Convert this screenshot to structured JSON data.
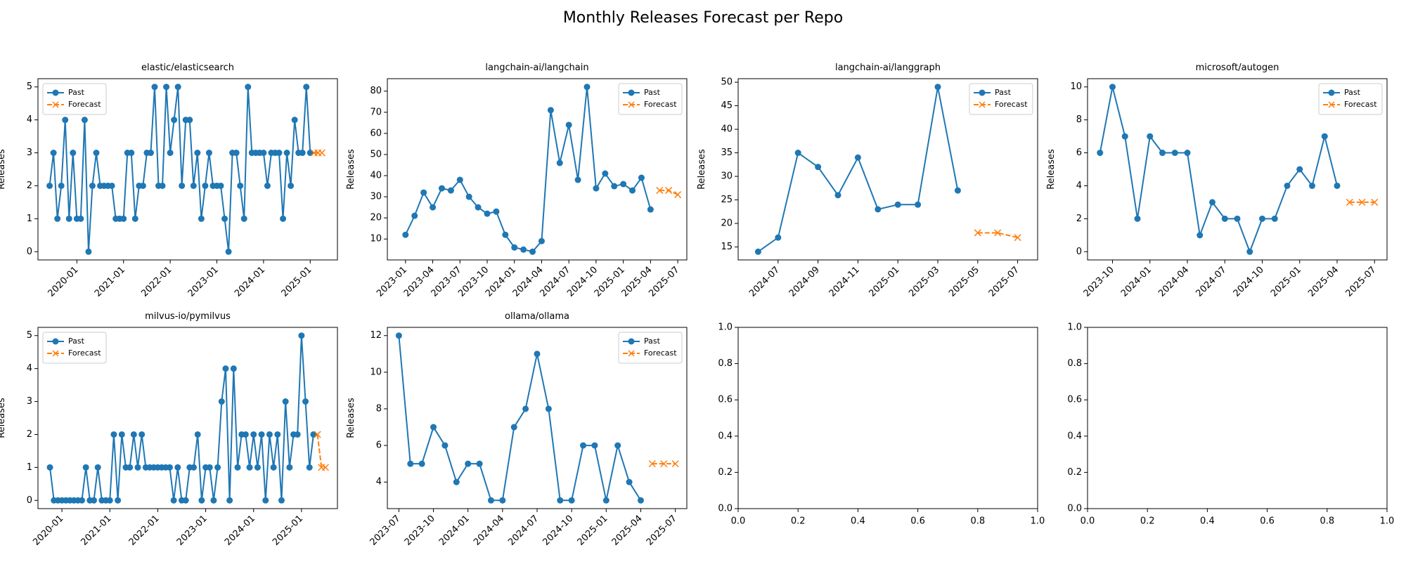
{
  "title": "Monthly Releases Forecast per Repo",
  "chart_data": [
    {
      "type": "line",
      "title": "elastic/elasticsearch",
      "y_label": "Releases",
      "legend": "upper left",
      "xlim": [
        "2019-03",
        "2025-08"
      ],
      "ylim": [
        -0.25,
        5.25
      ],
      "xticks": [
        "2020-01",
        "2021-01",
        "2022-01",
        "2023-01",
        "2024-01",
        "2025-01"
      ],
      "yticks": [
        0,
        1,
        2,
        3,
        4,
        5
      ],
      "series": [
        {
          "name": "Past",
          "color": "#1f77b4",
          "marker": "o",
          "linestyle": "solid",
          "x": [
            "2019-06",
            "2019-07",
            "2019-08",
            "2019-09",
            "2019-10",
            "2019-11",
            "2019-12",
            "2020-01",
            "2020-02",
            "2020-03",
            "2020-04",
            "2020-05",
            "2020-06",
            "2020-07",
            "2020-08",
            "2020-09",
            "2020-10",
            "2020-11",
            "2020-12",
            "2021-01",
            "2021-02",
            "2021-03",
            "2021-04",
            "2021-05",
            "2021-06",
            "2021-07",
            "2021-08",
            "2021-09",
            "2021-10",
            "2021-11",
            "2021-12",
            "2022-01",
            "2022-02",
            "2022-03",
            "2022-04",
            "2022-05",
            "2022-06",
            "2022-07",
            "2022-08",
            "2022-09",
            "2022-10",
            "2022-11",
            "2022-12",
            "2023-01",
            "2023-02",
            "2023-03",
            "2023-04",
            "2023-05",
            "2023-06",
            "2023-07",
            "2023-08",
            "2023-09",
            "2023-10",
            "2023-11",
            "2023-12",
            "2024-01",
            "2024-02",
            "2024-03",
            "2024-04",
            "2024-05",
            "2024-06",
            "2024-07",
            "2024-08",
            "2024-09",
            "2024-10",
            "2024-11",
            "2024-12",
            "2025-01"
          ],
          "values": [
            2,
            3,
            1,
            2,
            4,
            1,
            3,
            1,
            1,
            4,
            0,
            2,
            3,
            2,
            2,
            2,
            2,
            1,
            1,
            1,
            3,
            3,
            1,
            2,
            2,
            3,
            3,
            5,
            2,
            2,
            5,
            3,
            4,
            5,
            2,
            4,
            4,
            2,
            3,
            1,
            2,
            3,
            2,
            2,
            2,
            1,
            0,
            3,
            3,
            2,
            1,
            5,
            3,
            3,
            3,
            3,
            2,
            3,
            3,
            3,
            1,
            3,
            2,
            4,
            3,
            3,
            5,
            3
          ]
        },
        {
          "name": "Forecast",
          "color": "#ff7f0e",
          "marker": "x",
          "linestyle": "dashed",
          "x": [
            "2025-02",
            "2025-03",
            "2025-04"
          ],
          "values": [
            3,
            3,
            3
          ]
        }
      ]
    },
    {
      "type": "line",
      "title": "langchain-ai/langchain",
      "y_label": "Releases",
      "legend": "upper right",
      "xlim": [
        "2022-11",
        "2025-08"
      ],
      "ylim": [
        0.1,
        85.9
      ],
      "xticks": [
        "2023-01",
        "2023-04",
        "2023-07",
        "2023-10",
        "2024-01",
        "2024-04",
        "2024-07",
        "2024-10",
        "2025-01",
        "2025-04",
        "2025-07"
      ],
      "yticks": [
        10,
        20,
        30,
        40,
        50,
        60,
        70,
        80
      ],
      "series": [
        {
          "name": "Past",
          "color": "#1f77b4",
          "marker": "o",
          "linestyle": "solid",
          "x": [
            "2023-01",
            "2023-02",
            "2023-03",
            "2023-04",
            "2023-05",
            "2023-06",
            "2023-07",
            "2023-08",
            "2023-09",
            "2023-10",
            "2023-11",
            "2023-12",
            "2024-01",
            "2024-02",
            "2024-03",
            "2024-04",
            "2024-05",
            "2024-06",
            "2024-07",
            "2024-08",
            "2024-09",
            "2024-10",
            "2024-11",
            "2024-12",
            "2025-01",
            "2025-02",
            "2025-03",
            "2025-04"
          ],
          "values": [
            12,
            21,
            32,
            25,
            34,
            33,
            38,
            30,
            25,
            22,
            23,
            12,
            6,
            5,
            4,
            9,
            71,
            46,
            64,
            38,
            82,
            34,
            41,
            35,
            36,
            33,
            39,
            24
          ]
        },
        {
          "name": "Forecast",
          "color": "#ff7f0e",
          "marker": "x",
          "linestyle": "dashed",
          "x": [
            "2025-05",
            "2025-06",
            "2025-07"
          ],
          "values": [
            33,
            33,
            31
          ]
        }
      ]
    },
    {
      "type": "line",
      "title": "langchain-ai/langgraph",
      "y_label": "Releases",
      "legend": "upper right",
      "xlim": [
        "2024-05",
        "2025-08"
      ],
      "ylim": [
        12.25,
        50.75
      ],
      "xticks": [
        "2024-07",
        "2024-09",
        "2024-11",
        "2025-01",
        "2025-03",
        "2025-05",
        "2025-07"
      ],
      "yticks": [
        15,
        20,
        25,
        30,
        35,
        40,
        45,
        50
      ],
      "series": [
        {
          "name": "Past",
          "color": "#1f77b4",
          "marker": "o",
          "linestyle": "solid",
          "x": [
            "2024-06",
            "2024-07",
            "2024-08",
            "2024-09",
            "2024-10",
            "2024-11",
            "2024-12",
            "2025-01",
            "2025-02",
            "2025-03",
            "2025-04"
          ],
          "values": [
            14,
            17,
            35,
            32,
            26,
            34,
            23,
            24,
            24,
            49,
            27
          ]
        },
        {
          "name": "Forecast",
          "color": "#ff7f0e",
          "marker": "x",
          "linestyle": "dashed",
          "x": [
            "2025-05",
            "2025-06",
            "2025-07"
          ],
          "values": [
            18,
            18,
            17
          ]
        }
      ]
    },
    {
      "type": "line",
      "title": "microsoft/autogen",
      "y_label": "Releases",
      "legend": "upper right",
      "xlim": [
        "2023-08",
        "2025-08"
      ],
      "ylim": [
        -0.5,
        10.5
      ],
      "xticks": [
        "2023-10",
        "2024-01",
        "2024-04",
        "2024-07",
        "2024-10",
        "2025-01",
        "2025-04",
        "2025-07"
      ],
      "yticks": [
        0,
        2,
        4,
        6,
        8,
        10
      ],
      "series": [
        {
          "name": "Past",
          "color": "#1f77b4",
          "marker": "o",
          "linestyle": "solid",
          "x": [
            "2023-09",
            "2023-10",
            "2023-11",
            "2023-12",
            "2024-01",
            "2024-02",
            "2024-03",
            "2024-04",
            "2024-05",
            "2024-06",
            "2024-07",
            "2024-08",
            "2024-09",
            "2024-10",
            "2024-11",
            "2024-12",
            "2025-01",
            "2025-02",
            "2025-03",
            "2025-04"
          ],
          "values": [
            6,
            10,
            7,
            2,
            7,
            6,
            6,
            6,
            1,
            3,
            2,
            2,
            0,
            2,
            2,
            4,
            5,
            4,
            7,
            4
          ]
        },
        {
          "name": "Forecast",
          "color": "#ff7f0e",
          "marker": "x",
          "linestyle": "dashed",
          "x": [
            "2025-05",
            "2025-06",
            "2025-07"
          ],
          "values": [
            3,
            3,
            3
          ]
        }
      ]
    },
    {
      "type": "line",
      "title": "milvus-io/pymilvus",
      "y_label": "Releases",
      "legend": "upper left",
      "xlim": [
        "2019-07",
        "2025-10"
      ],
      "ylim": [
        -0.25,
        5.25
      ],
      "xticks": [
        "2020-01",
        "2021-01",
        "2022-01",
        "2023-01",
        "2024-01",
        "2025-01"
      ],
      "yticks": [
        0,
        1,
        2,
        3,
        4,
        5
      ],
      "series": [
        {
          "name": "Past",
          "color": "#1f77b4",
          "marker": "o",
          "linestyle": "solid",
          "x": [
            "2019-10",
            "2019-11",
            "2019-12",
            "2020-01",
            "2020-02",
            "2020-03",
            "2020-04",
            "2020-05",
            "2020-06",
            "2020-07",
            "2020-08",
            "2020-09",
            "2020-10",
            "2020-11",
            "2020-12",
            "2021-01",
            "2021-02",
            "2021-03",
            "2021-04",
            "2021-05",
            "2021-06",
            "2021-07",
            "2021-08",
            "2021-09",
            "2021-10",
            "2021-11",
            "2021-12",
            "2022-01",
            "2022-02",
            "2022-03",
            "2022-04",
            "2022-05",
            "2022-06",
            "2022-07",
            "2022-08",
            "2022-09",
            "2022-10",
            "2022-11",
            "2022-12",
            "2023-01",
            "2023-02",
            "2023-03",
            "2023-04",
            "2023-05",
            "2023-06",
            "2023-07",
            "2023-08",
            "2023-09",
            "2023-10",
            "2023-11",
            "2023-12",
            "2024-01",
            "2024-02",
            "2024-03",
            "2024-04",
            "2024-05",
            "2024-06",
            "2024-07",
            "2024-08",
            "2024-09",
            "2024-10",
            "2024-11",
            "2024-12",
            "2025-01",
            "2025-02",
            "2025-03",
            "2025-04"
          ],
          "values": [
            1,
            0,
            0,
            0,
            0,
            0,
            0,
            0,
            0,
            1,
            0,
            0,
            1,
            0,
            0,
            0,
            2,
            0,
            2,
            1,
            1,
            2,
            1,
            2,
            1,
            1,
            1,
            1,
            1,
            1,
            1,
            0,
            1,
            0,
            0,
            1,
            1,
            2,
            0,
            1,
            1,
            0,
            1,
            3,
            4,
            0,
            4,
            1,
            2,
            2,
            1,
            2,
            1,
            2,
            0,
            2,
            1,
            2,
            0,
            3,
            1,
            2,
            2,
            5,
            3,
            1,
            2
          ]
        },
        {
          "name": "Forecast",
          "color": "#ff7f0e",
          "marker": "x",
          "linestyle": "dashed",
          "x": [
            "2025-05",
            "2025-06",
            "2025-07"
          ],
          "values": [
            2,
            1,
            1
          ]
        }
      ]
    },
    {
      "type": "line",
      "title": "ollama/ollama",
      "y_label": "Releases",
      "legend": "upper right",
      "xlim": [
        "2023-06",
        "2025-08"
      ],
      "ylim": [
        2.55,
        12.45
      ],
      "xticks": [
        "2023-07",
        "2023-10",
        "2024-01",
        "2024-04",
        "2024-07",
        "2024-10",
        "2025-01",
        "2025-04",
        "2025-07"
      ],
      "yticks": [
        4,
        6,
        8,
        10,
        12
      ],
      "series": [
        {
          "name": "Past",
          "color": "#1f77b4",
          "marker": "o",
          "linestyle": "solid",
          "x": [
            "2023-07",
            "2023-08",
            "2023-09",
            "2023-10",
            "2023-11",
            "2023-12",
            "2024-01",
            "2024-02",
            "2024-03",
            "2024-04",
            "2024-05",
            "2024-06",
            "2024-07",
            "2024-08",
            "2024-09",
            "2024-10",
            "2024-11",
            "2024-12",
            "2025-01",
            "2025-02",
            "2025-03",
            "2025-04"
          ],
          "values": [
            12,
            5,
            5,
            7,
            6,
            4,
            5,
            5,
            3,
            3,
            7,
            8,
            11,
            8,
            3,
            3,
            6,
            6,
            3,
            6,
            4,
            3
          ]
        },
        {
          "name": "Forecast",
          "color": "#ff7f0e",
          "marker": "x",
          "linestyle": "dashed",
          "x": [
            "2025-05",
            "2025-06",
            "2025-07"
          ],
          "values": [
            5,
            5,
            5
          ]
        }
      ]
    },
    {
      "type": "line",
      "xlim": [
        0,
        1
      ],
      "ylim": [
        0,
        1
      ],
      "xticks": [
        {
          "value": 0,
          "label": "0.0"
        },
        {
          "value": 0.2,
          "label": "0.2"
        },
        {
          "value": 0.4,
          "label": "0.4"
        },
        {
          "value": 0.6,
          "label": "0.6"
        },
        {
          "value": 0.8,
          "label": "0.8"
        },
        {
          "value": 1,
          "label": "1.0"
        }
      ],
      "yticks": [
        {
          "value": 0,
          "label": "0.0"
        },
        {
          "value": 0.2,
          "label": "0.2"
        },
        {
          "value": 0.4,
          "label": "0.4"
        },
        {
          "value": 0.6,
          "label": "0.6"
        },
        {
          "value": 0.8,
          "label": "0.8"
        },
        {
          "value": 1,
          "label": "1.0"
        }
      ]
    },
    {
      "type": "line",
      "xlim": [
        0,
        1
      ],
      "ylim": [
        0,
        1
      ],
      "xticks": [
        {
          "value": 0,
          "label": "0.0"
        },
        {
          "value": 0.2,
          "label": "0.2"
        },
        {
          "value": 0.4,
          "label": "0.4"
        },
        {
          "value": 0.6,
          "label": "0.6"
        },
        {
          "value": 0.8,
          "label": "0.8"
        },
        {
          "value": 1,
          "label": "1.0"
        }
      ],
      "yticks": [
        {
          "value": 0,
          "label": "0.0"
        },
        {
          "value": 0.2,
          "label": "0.2"
        },
        {
          "value": 0.4,
          "label": "0.4"
        },
        {
          "value": 0.6,
          "label": "0.6"
        },
        {
          "value": 0.8,
          "label": "0.8"
        },
        {
          "value": 1,
          "label": "1.0"
        }
      ]
    }
  ]
}
